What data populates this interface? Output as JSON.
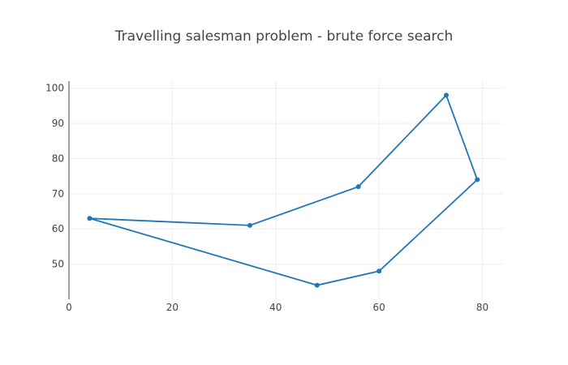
{
  "chart_data": {
    "type": "line",
    "title": "Travelling salesman problem - brute force search",
    "xlabel": "",
    "ylabel": "",
    "xlim": [
      0,
      84
    ],
    "ylim": [
      40,
      102
    ],
    "xticks": [
      0,
      20,
      40,
      60,
      80
    ],
    "yticks": [
      50,
      60,
      70,
      80,
      90,
      100
    ],
    "grid": true,
    "series": [
      {
        "x": [
          4,
          35,
          56,
          73,
          79,
          60,
          48,
          4
        ],
        "y": [
          63,
          61,
          72,
          98,
          74,
          48,
          44,
          63
        ]
      }
    ],
    "color": "#1f77b4"
  }
}
